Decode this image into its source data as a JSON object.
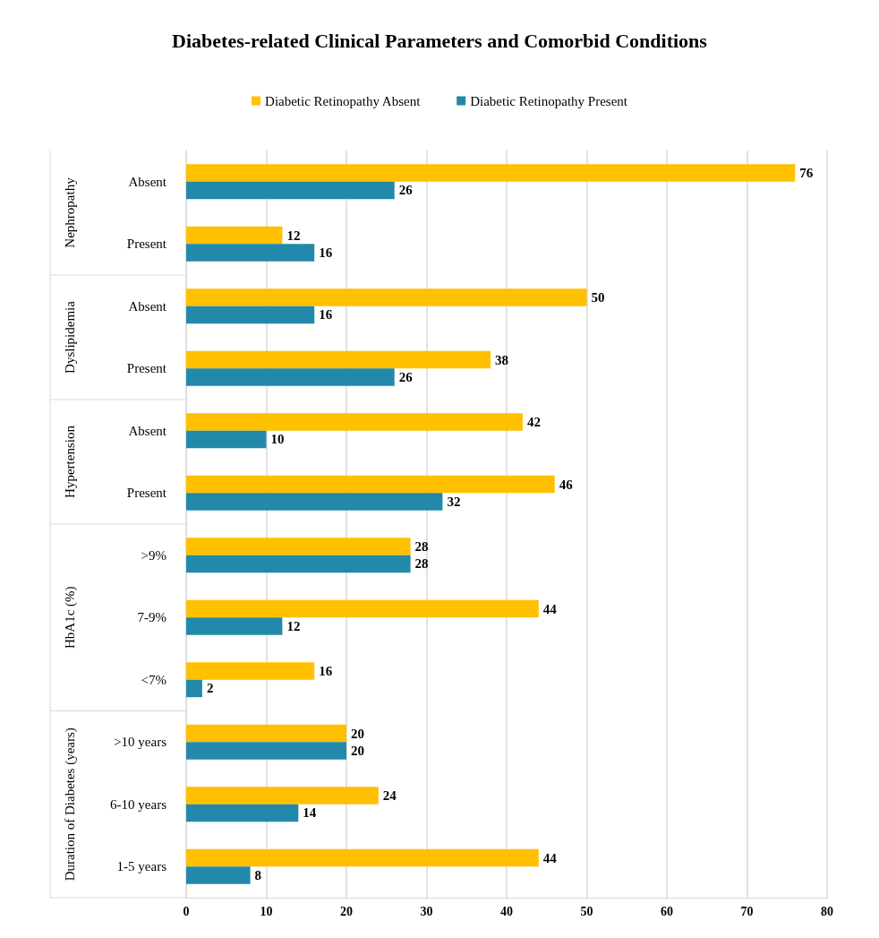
{
  "chart_data": {
    "type": "bar",
    "orientation": "horizontal",
    "title": "Diabetes-related Clinical Parameters and Comorbid Conditions",
    "categories": [
      "Absent",
      "Present",
      "Absent",
      "Present",
      "Absent",
      "Present",
      ">9%",
      "7-9%",
      "<7%",
      ">10 years",
      "6-10 years",
      "1-5 years"
    ],
    "series": [
      {
        "name": "Diabetic Retinopathy Absent",
        "color": "#ffc000",
        "values": [
          76,
          12,
          50,
          38,
          42,
          46,
          28,
          44,
          16,
          20,
          24,
          44
        ]
      },
      {
        "name": "Diabetic Retinopathy Present",
        "color": "#2389aa",
        "values": [
          26,
          16,
          16,
          26,
          10,
          32,
          28,
          12,
          2,
          20,
          14,
          8
        ]
      }
    ],
    "annotations": [
      "Nephropathy",
      "Dyslipidemia",
      "Hypertension",
      "HbA1c (%)",
      "Duration of Diabetes (years)"
    ],
    "xlim": [
      0,
      80
    ],
    "xticks": [
      0,
      10,
      20,
      30,
      40,
      50,
      60,
      70,
      80
    ],
    "grid": "x",
    "legend": "top",
    "data_labels": true
  }
}
